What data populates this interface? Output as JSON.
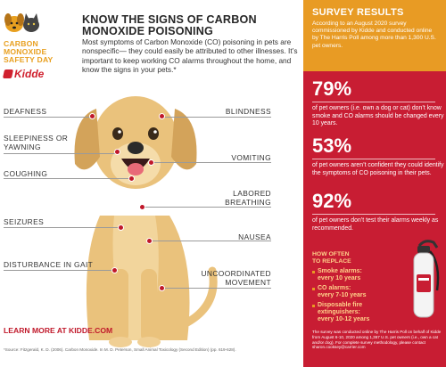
{
  "logo": {
    "line1": "CARBON",
    "line2": "MONOXIDE",
    "line3": "SAFETY DAY",
    "brand": "Kidde"
  },
  "headline": {
    "line1": "KNOW THE SIGNS OF CARBON",
    "line2": "MONOXIDE POISONING"
  },
  "intro": "Most symptoms of Carbon Monoxide (CO) poisoning in pets are nonspecific— they could easily be attributed to other illnesses. It’s important to keep working CO alarms throughout the home, and know the signs in your pets.*",
  "symptoms": {
    "deafness": "DEAFNESS",
    "blindness": "BLINDNESS",
    "sleepiness": "SLEEPINESS OR YAWNING",
    "vomiting": "VOMITING",
    "coughing": "COUGHING",
    "labored": "LABORED BREATHING",
    "seizures": "SEIZURES",
    "nausea": "NAUSEA",
    "gait": "DISTURBANCE IN GAIT",
    "uncoordinated": "UNCOORDINATED MOVEMENT"
  },
  "learn_more": "LEARN MORE AT KIDDE.COM",
  "source": "*Source: Fitzgerald, K. D. (2006). Carbon Monoxide. In M. D. Peterson, Small Animal Toxicology (Second Edition) (pp. 619-628).",
  "survey": {
    "title": "SURVEY RESULTS",
    "intro": "According to an August 2020 survey commissioned by Kidde and conducted online by The Harris Poll among more than 1,300 U.S. pet owners.",
    "stats": [
      {
        "value": "79%",
        "text": "of pet owners (i.e. own a dog or cat) don’t know smoke and CO alarms should be changed every 10 years."
      },
      {
        "value": "53%",
        "text": "of pet owners aren’t confident they could identify the symptoms of CO poisoning in their pets."
      },
      {
        "value": "92%",
        "text": "of pet owners don’t test their alarms weekly as recommended."
      }
    ],
    "replace_title_1": "HOW OFTEN",
    "replace_title_2": "TO REPLACE",
    "replace": [
      {
        "head": "Smoke alarms:",
        "val": "every 10 years"
      },
      {
        "head": "CO alarms:",
        "val": "every 7-10 years"
      },
      {
        "head": "Disposable fire extinguishers:",
        "val": "every 10-12 years"
      }
    ],
    "footnote": "The survey was conducted online by The Harris Poll on behalf of Kidde from August 6-10, 2020 among 1,367 U.S. pet owners (i.e., own a cat and/or dog). For complete survey methodology, please contact sharon.cooksey@carrier.com"
  },
  "colors": {
    "red": "#c81d33",
    "orange": "#e89b24",
    "dog": "#eac27c"
  }
}
